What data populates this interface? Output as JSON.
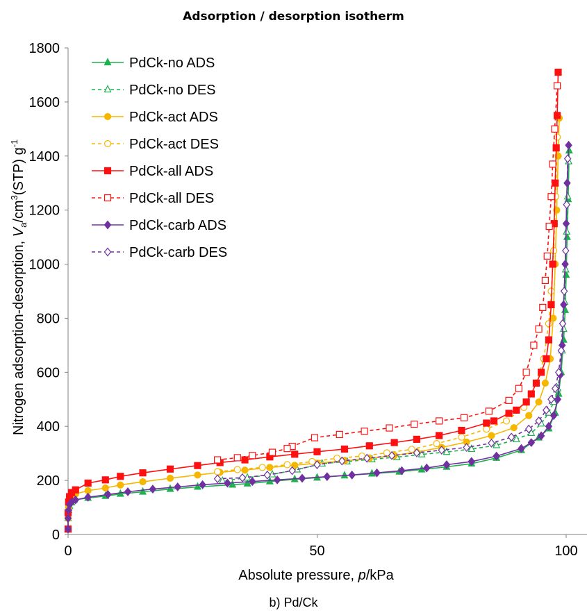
{
  "chart_data": {
    "type": "line",
    "title": "Adsorption / desorption isotherm",
    "caption": "b) Pd/Ck",
    "xlabel": "Absolute pressure, p/kPa",
    "ylabel": "Nitrogen adsorption-desorption, Va/cm3(STP) g-1",
    "xlim": [
      0,
      100
    ],
    "ylim": [
      0,
      1800
    ],
    "xticks": [
      0,
      50,
      100
    ],
    "yticks": [
      0,
      200,
      400,
      600,
      800,
      1000,
      1200,
      1400,
      1600,
      1800
    ],
    "grid": false,
    "legend_position": "top-left",
    "series": [
      {
        "name": "PdCk-no ADS",
        "color": "#1fb04f",
        "marker": "triangle",
        "filled": true,
        "dashed": false,
        "x": [
          0,
          0,
          0.1,
          0.3,
          0.7,
          1.2,
          4,
          7.5,
          10.5,
          15,
          20.5,
          26,
          33,
          36,
          40.5,
          45.5,
          50,
          55.5,
          61,
          66.5,
          71,
          76,
          81,
          86,
          91,
          94.5,
          96.5,
          97.8,
          98.5,
          99,
          99.5,
          99.8,
          100,
          100.2,
          100.4,
          100.6
        ],
        "y": [
          20,
          60,
          90,
          105,
          118,
          128,
          135,
          142,
          150,
          158,
          168,
          176,
          184,
          188,
          196,
          204,
          210,
          218,
          225,
          232,
          240,
          250,
          262,
          283,
          312,
          358,
          392,
          450,
          520,
          600,
          720,
          830,
          960,
          1100,
          1240,
          1420
        ]
      },
      {
        "name": "PdCk-no DES",
        "color": "#1fb04f",
        "marker": "triangle",
        "filled": false,
        "dashed": true,
        "x": [
          100.5,
          100.3,
          100.1,
          99.9,
          99.7,
          99.5,
          99.2,
          98.8,
          98.3,
          97.5,
          96.5,
          95,
          93,
          90,
          86,
          81,
          76,
          71,
          66,
          61,
          56,
          51,
          46,
          41,
          36,
          31
        ],
        "y": [
          1380,
          1250,
          1120,
          980,
          860,
          760,
          680,
          600,
          540,
          490,
          450,
          410,
          375,
          352,
          330,
          316,
          305,
          296,
          286,
          278,
          270,
          262,
          240,
          222,
          210,
          198
        ]
      },
      {
        "name": "PdCk-act ADS",
        "color": "#f5b700",
        "marker": "circle",
        "filled": true,
        "dashed": false,
        "x": [
          0,
          0,
          0.1,
          0.3,
          0.7,
          1.5,
          4,
          7.5,
          10.5,
          15,
          20.5,
          26,
          30.5,
          35.5,
          40.5,
          45.5,
          50,
          55.5,
          60.5,
          65.5,
          70,
          75,
          80,
          85,
          89.5,
          92.5,
          94.5,
          95.8,
          96.8,
          97.4,
          97.8,
          98.1,
          98.4,
          98.6
        ],
        "y": [
          20,
          60,
          100,
          120,
          140,
          150,
          162,
          172,
          183,
          195,
          208,
          220,
          230,
          238,
          248,
          256,
          264,
          272,
          282,
          292,
          305,
          322,
          342,
          366,
          395,
          440,
          490,
          560,
          650,
          800,
          1000,
          1200,
          1400,
          1540
        ]
      },
      {
        "name": "PdCk-act DES",
        "color": "#f5b700",
        "marker": "circle",
        "filled": false,
        "dashed": true,
        "x": [
          98.2,
          97.9,
          97.5,
          97,
          96.5,
          95.5,
          94,
          91.5,
          88,
          84,
          79,
          74,
          69,
          64,
          59,
          54,
          49,
          44,
          39,
          34,
          30
        ],
        "y": [
          1470,
          1250,
          1050,
          900,
          780,
          650,
          560,
          470,
          420,
          390,
          360,
          336,
          315,
          302,
          290,
          282,
          270,
          258,
          248,
          240,
          232
        ]
      },
      {
        "name": "PdCk-all ADS",
        "color": "#ff1010",
        "marker": "square",
        "filled": true,
        "dashed": false,
        "x": [
          0,
          0,
          0.1,
          0.3,
          0.7,
          1.5,
          4,
          7.5,
          10.5,
          15,
          20.5,
          26,
          30.5,
          35.5,
          40.5,
          45.5,
          50,
          55.5,
          60.5,
          65.5,
          70,
          74.5,
          79,
          84,
          85.5,
          88.5,
          90,
          92,
          93,
          94,
          95,
          96,
          96.5,
          97,
          97.3,
          97.6,
          97.8,
          98,
          98.2,
          98.4
        ],
        "y": [
          20,
          80,
          120,
          140,
          155,
          165,
          190,
          202,
          215,
          228,
          242,
          255,
          266,
          276,
          287,
          297,
          306,
          316,
          328,
          340,
          352,
          366,
          385,
          412,
          420,
          448,
          460,
          490,
          520,
          560,
          600,
          650,
          720,
          850,
          1000,
          1150,
          1300,
          1430,
          1550,
          1710
        ]
      },
      {
        "name": "PdCk-all DES",
        "color": "#ff1010",
        "marker": "square",
        "filled": false,
        "dashed": true,
        "x": [
          98.2,
          97.7,
          97.3,
          97,
          96.6,
          96.2,
          95.8,
          95.3,
          94.5,
          93.5,
          92,
          90.5,
          88.5,
          84.5,
          79.5,
          74.5,
          69.5,
          64.5,
          59.5,
          54.5,
          49.5,
          45,
          44,
          41,
          37,
          34,
          30
        ],
        "y": [
          1660,
          1500,
          1370,
          1250,
          1140,
          1030,
          940,
          840,
          760,
          700,
          600,
          540,
          496,
          456,
          432,
          420,
          408,
          394,
          382,
          370,
          358,
          326,
          318,
          304,
          292,
          284,
          276
        ]
      },
      {
        "name": "PdCk-carb ADS",
        "color": "#7030a0",
        "marker": "diamond",
        "filled": true,
        "dashed": false,
        "x": [
          0,
          0,
          0.1,
          0.3,
          0.7,
          1.5,
          4,
          8,
          12,
          17,
          22,
          27,
          32,
          37,
          42,
          47,
          52,
          57,
          62,
          67,
          72,
          76,
          81,
          86,
          91,
          93,
          95,
          96.5,
          97.5,
          98.3,
          98.8,
          99.2,
          99.5,
          99.8,
          100,
          100.2,
          100.5
        ],
        "y": [
          20,
          60,
          90,
          110,
          120,
          128,
          138,
          148,
          158,
          168,
          176,
          184,
          190,
          196,
          202,
          208,
          214,
          220,
          228,
          236,
          246,
          258,
          270,
          290,
          318,
          340,
          365,
          400,
          440,
          500,
          590,
          700,
          850,
          1000,
          1150,
          1300,
          1440
        ]
      },
      {
        "name": "PdCk-carb DES",
        "color": "#7030a0",
        "marker": "diamond",
        "filled": false,
        "dashed": true,
        "x": [
          100.3,
          100.1,
          99.9,
          99.6,
          99.3,
          99,
          98.5,
          97.8,
          97,
          96,
          94.5,
          92.5,
          89,
          85,
          80,
          75,
          70,
          65,
          60,
          55,
          50,
          45,
          40,
          35,
          30
        ],
        "y": [
          1390,
          1220,
          1050,
          900,
          780,
          680,
          600,
          540,
          500,
          460,
          420,
          390,
          360,
          338,
          322,
          312,
          302,
          292,
          282,
          272,
          258,
          236,
          220,
          210,
          206
        ]
      }
    ]
  }
}
